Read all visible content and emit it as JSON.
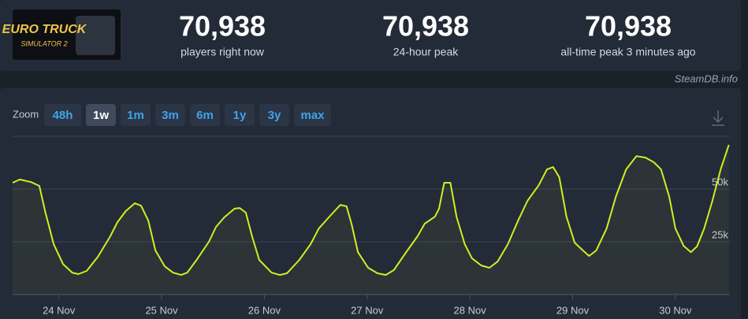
{
  "header": {
    "logo": {
      "title": "EURO TRUCK",
      "subtitle": "SIMULATOR 2"
    },
    "stats": [
      {
        "value": "70,938",
        "label": "players right now"
      },
      {
        "value": "70,938",
        "label": "24-hour peak"
      },
      {
        "value": "70,938",
        "label": "all-time peak 3 minutes ago"
      }
    ]
  },
  "watermark": "SteamDB.info",
  "zoom": {
    "label": "Zoom",
    "options": [
      "48h",
      "1w",
      "1m",
      "3m",
      "6m",
      "1y",
      "3y",
      "max"
    ],
    "active_index": 1
  },
  "chart_data": {
    "type": "line",
    "color": "#d2ee22",
    "grid": true,
    "x": [
      23.55,
      23.62,
      23.73,
      23.81,
      23.87,
      23.95,
      24.04,
      24.13,
      24.19,
      24.27,
      24.38,
      24.5,
      24.57,
      24.65,
      24.74,
      24.8,
      24.87,
      24.94,
      25.03,
      25.11,
      25.19,
      25.25,
      25.34,
      25.46,
      25.53,
      25.61,
      25.71,
      25.76,
      25.82,
      25.88,
      25.95,
      26.07,
      26.15,
      26.22,
      26.34,
      26.45,
      26.53,
      26.64,
      26.74,
      26.8,
      26.85,
      26.91,
      27.01,
      27.1,
      27.18,
      27.26,
      27.37,
      27.49,
      27.56,
      27.66,
      27.7,
      27.75,
      27.81,
      27.87,
      27.95,
      28.02,
      28.11,
      28.19,
      28.27,
      28.37,
      28.47,
      28.56,
      28.67,
      28.75,
      28.81,
      28.87,
      28.94,
      29.02,
      29.1,
      29.16,
      29.23,
      29.33,
      29.42,
      29.52,
      29.62,
      29.71,
      29.79,
      29.86,
      29.94,
      30,
      30.08,
      30.15,
      30.21,
      30.28,
      30.36,
      30.44,
      30.52
    ],
    "values": [
      53000,
      54500,
      53300,
      51500,
      38800,
      23900,
      14500,
      10400,
      9700,
      11200,
      17900,
      27600,
      34300,
      39500,
      43300,
      42100,
      35100,
      20900,
      13400,
      10400,
      9300,
      10400,
      16400,
      25000,
      32100,
      36600,
      40700,
      41000,
      38800,
      27600,
      16400,
      10400,
      9300,
      10100,
      16400,
      23900,
      31300,
      37300,
      42500,
      41800,
      33200,
      20100,
      12700,
      10100,
      9300,
      11600,
      19400,
      27600,
      33600,
      36900,
      40700,
      53000,
      53000,
      36900,
      23900,
      17200,
      13800,
      12700,
      15700,
      23900,
      35100,
      44400,
      51800,
      59300,
      60400,
      55600,
      36900,
      24600,
      20900,
      18300,
      20900,
      31300,
      46300,
      59300,
      65600,
      64900,
      62700,
      59300,
      46300,
      31300,
      23100,
      20100,
      22800,
      31300,
      44400,
      59300,
      70938
    ],
    "xlim": [
      23.55,
      30.53
    ],
    "xticks": [
      {
        "value": 24,
        "label": "24 Nov"
      },
      {
        "value": 25,
        "label": "25 Nov"
      },
      {
        "value": 26,
        "label": "26 Nov"
      },
      {
        "value": 27,
        "label": "27 Nov"
      },
      {
        "value": 28,
        "label": "28 Nov"
      },
      {
        "value": 29,
        "label": "29 Nov"
      },
      {
        "value": 30,
        "label": "30 Nov"
      }
    ],
    "ylim": [
      0,
      75000
    ],
    "yticks": [
      {
        "value": 25000,
        "label": "25k"
      },
      {
        "value": 50000,
        "label": "50k"
      }
    ]
  }
}
